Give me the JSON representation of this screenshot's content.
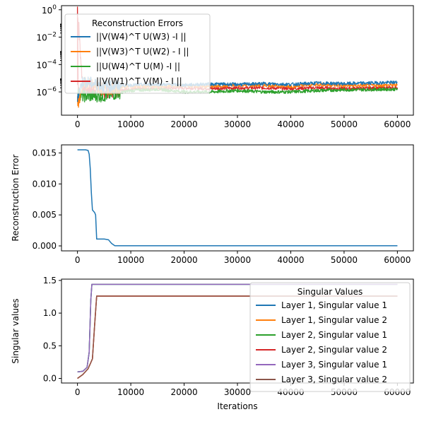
{
  "chart_data": [
    {
      "type": "line",
      "yscale": "log",
      "xlim": [
        -3000,
        63000
      ],
      "ylim_log10": [
        -7.7,
        0.3
      ],
      "xticks": [
        "0",
        "10000",
        "20000",
        "30000",
        "40000",
        "50000",
        "60000"
      ],
      "xtick_values": [
        0,
        10000,
        20000,
        30000,
        40000,
        50000,
        60000
      ],
      "ytick_exponents": [
        0,
        -2,
        -4,
        -6
      ],
      "ytick_mantissa": "10",
      "legend_title": "Reconstruction Errors",
      "legend_position": "upper-left",
      "series": [
        {
          "name": "||V(W4)^T U(W3) -I ||",
          "color": "#1f77b4",
          "log10_values": [
            -6.3,
            -5.2,
            -5.6,
            -5.5,
            -5.45,
            -5.5,
            -5.42,
            -5.45,
            -5.4,
            -5.45,
            -5.35,
            -5.4,
            -5.3
          ]
        },
        {
          "name": "||V(W3)^T U(W2) - I ||",
          "color": "#ff7f0e",
          "log10_values": [
            -7.5,
            -5.3,
            -5.8,
            -5.6,
            -5.6,
            -5.55,
            -5.6,
            -5.5,
            -5.5,
            -5.6,
            -5.45,
            -5.55,
            -5.5
          ]
        },
        {
          "name": "||U(W4)^T U(M) -I ||",
          "color": "#2ca02c",
          "log10_values": [
            -6.0,
            -6.3,
            -6.3,
            -5.9,
            -5.8,
            -6.0,
            -6.0,
            -5.9,
            -6.0,
            -6.0,
            -5.9,
            -5.85,
            -5.8
          ]
        },
        {
          "name": "||V(W1)^T V(M) - I ||",
          "color": "#d62728",
          "log10_values": [
            -0.1,
            -5.7,
            -5.9,
            -5.8,
            -5.75,
            -5.7,
            -5.75,
            -5.7,
            -5.7,
            -5.75,
            -5.7,
            -5.75,
            -5.7
          ]
        }
      ],
      "x": [
        0,
        1000,
        5000,
        10000,
        15000,
        20000,
        25000,
        30000,
        35000,
        40000,
        45000,
        50000,
        60000
      ]
    },
    {
      "type": "line",
      "xlim": [
        -3000,
        63000
      ],
      "ylim": [
        -0.0008,
        0.0163
      ],
      "xticks": [
        "0",
        "10000",
        "20000",
        "30000",
        "40000",
        "50000",
        "60000"
      ],
      "xtick_values": [
        0,
        10000,
        20000,
        30000,
        40000,
        50000,
        60000
      ],
      "yticks": [
        "0.000",
        "0.005",
        "0.010",
        "0.015"
      ],
      "ytick_values": [
        0,
        0.005,
        0.01,
        0.015
      ],
      "ylabel": "Reconstruction Error",
      "series": [
        {
          "color": "#1f77b4",
          "x": [
            0,
            1500,
            2000,
            2200,
            2400,
            2600,
            2800,
            3000,
            3200,
            3400,
            3600,
            5000,
            5800,
            6400,
            7000,
            60000
          ],
          "values": [
            0.0155,
            0.0155,
            0.0154,
            0.0148,
            0.0125,
            0.0085,
            0.0058,
            0.0056,
            0.0054,
            0.005,
            0.0011,
            0.0011,
            0.001,
            0.0004,
            3e-05,
            2e-05
          ]
        }
      ]
    },
    {
      "type": "line",
      "xlim": [
        -3000,
        63000
      ],
      "ylim": [
        -0.07,
        1.52
      ],
      "xticks": [
        "0",
        "10000",
        "20000",
        "30000",
        "40000",
        "50000",
        "60000"
      ],
      "xtick_values": [
        0,
        10000,
        20000,
        30000,
        40000,
        50000,
        60000
      ],
      "yticks": [
        "0.0",
        "0.5",
        "1.0",
        "1.5"
      ],
      "ytick_values": [
        0,
        0.5,
        1.0,
        1.5
      ],
      "xlabel": "Iterations",
      "ylabel": "Singular values",
      "legend_title": "Singular Values",
      "legend_position": "upper-right",
      "series": [
        {
          "name": "Layer 1, Singular value 1",
          "color": "#1f77b4",
          "x": [
            0,
            1000,
            1800,
            2200,
            2500,
            2700,
            60000
          ],
          "values": [
            0.1,
            0.11,
            0.17,
            0.4,
            1.2,
            1.44,
            1.44
          ]
        },
        {
          "name": "Layer 1, Singular value 2",
          "color": "#ff7f0e",
          "x": [
            0,
            1000,
            2000,
            2800,
            3200,
            3600,
            60000
          ],
          "values": [
            0.0,
            0.06,
            0.15,
            0.3,
            0.8,
            1.26,
            1.26
          ]
        },
        {
          "name": "Layer 2, Singular value 1",
          "color": "#2ca02c",
          "x": [
            0,
            1000,
            1800,
            2200,
            2500,
            2700,
            60000
          ],
          "values": [
            0.1,
            0.11,
            0.17,
            0.4,
            1.2,
            1.44,
            1.44
          ]
        },
        {
          "name": "Layer 2, Singular value 2",
          "color": "#d62728",
          "x": [
            0,
            1000,
            2000,
            2800,
            3200,
            3600,
            60000
          ],
          "values": [
            0.0,
            0.06,
            0.15,
            0.3,
            0.8,
            1.26,
            1.26
          ]
        },
        {
          "name": "Layer 3, Singular value 1",
          "color": "#9467bd",
          "x": [
            0,
            1000,
            1800,
            2200,
            2500,
            2700,
            60000
          ],
          "values": [
            0.1,
            0.11,
            0.17,
            0.4,
            1.2,
            1.44,
            1.44
          ]
        },
        {
          "name": "Layer 3, Singular value 2",
          "color": "#8c564b",
          "x": [
            0,
            1000,
            2000,
            2800,
            3200,
            3600,
            60000
          ],
          "values": [
            0.0,
            0.06,
            0.15,
            0.3,
            0.8,
            1.26,
            1.26
          ]
        }
      ]
    }
  ]
}
